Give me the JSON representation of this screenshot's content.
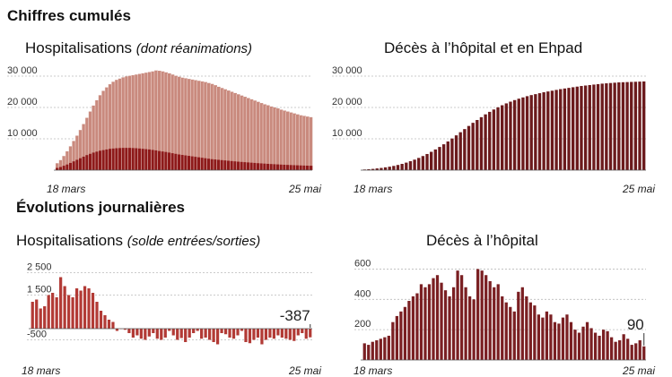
{
  "headings": {
    "cumulative": "Chiffres cumulés",
    "daily": "Évolutions journalières"
  },
  "chart_data": [
    {
      "id": "hosp_cum",
      "type": "bar",
      "title": "Hospitalisations",
      "subtitle": "(dont réanimations)",
      "x_start_label": "18 mars",
      "x_end_label": "25 mai",
      "yticks": [
        10000,
        20000,
        30000
      ],
      "ytick_labels": [
        "10 000",
        "20 000",
        "30 000"
      ],
      "ylim": [
        0,
        32000
      ],
      "colors": {
        "hospitalisations": "#c98a7e",
        "reanimations": "#8e1a1a"
      },
      "series": [
        {
          "name": "Hospitalisations",
          "values": [
            2200,
            3200,
            4500,
            6000,
            7600,
            9300,
            11000,
            12800,
            14700,
            16700,
            18700,
            20600,
            22300,
            23900,
            25300,
            26400,
            27400,
            28200,
            28800,
            29200,
            29600,
            29900,
            30100,
            30300,
            30500,
            30700,
            30900,
            31100,
            31300,
            31500,
            31800,
            31700,
            31500,
            31200,
            30900,
            30500,
            30100,
            29800,
            29500,
            29300,
            29100,
            28900,
            28700,
            28500,
            28300,
            28100,
            27800,
            27500,
            27100,
            26600,
            26200,
            25800,
            25400,
            25000,
            24600,
            24200,
            23800,
            23400,
            23000,
            22600,
            22200,
            21800,
            21400,
            21000,
            20700,
            20300,
            20000,
            19700,
            19300,
            19000,
            18700,
            18400,
            18100,
            17800,
            17500,
            17300,
            17100,
            16900
          ]
        },
        {
          "name": "Réanimations",
          "values": [
            700,
            1000,
            1400,
            1800,
            2300,
            2800,
            3300,
            3800,
            4300,
            4800,
            5200,
            5600,
            5900,
            6200,
            6400,
            6600,
            6800,
            6900,
            7000,
            7050,
            7100,
            7100,
            7100,
            7050,
            7000,
            6900,
            6800,
            6700,
            6600,
            6450,
            6300,
            6100,
            5950,
            5800,
            5600,
            5400,
            5200,
            5000,
            4850,
            4700,
            4550,
            4400,
            4250,
            4100,
            3950,
            3800,
            3650,
            3500,
            3400,
            3300,
            3200,
            3100,
            3000,
            2900,
            2800,
            2700,
            2620,
            2540,
            2460,
            2380,
            2300,
            2220,
            2150,
            2080,
            2010,
            1950,
            1890,
            1830,
            1770,
            1720,
            1670,
            1620,
            1580,
            1540,
            1500,
            1460,
            1430,
            1400
          ]
        }
      ]
    },
    {
      "id": "deces_cum",
      "type": "bar",
      "title": "Décès à l’hôpital et en Ehpad",
      "x_start_label": "18 mars",
      "x_end_label": "25 mai",
      "yticks": [
        10000,
        20000,
        30000
      ],
      "ytick_labels": [
        "10 000",
        "20 000",
        "30 000"
      ],
      "ylim": [
        0,
        32000
      ],
      "colors": {
        "bars": "#6b1a1c"
      },
      "series": [
        {
          "name": "Décès",
          "values": [
            200,
            300,
            400,
            550,
            700,
            900,
            1100,
            1350,
            1650,
            2000,
            2400,
            2850,
            3350,
            3900,
            4500,
            5150,
            5850,
            6600,
            7400,
            8250,
            9150,
            10100,
            11100,
            12100,
            13100,
            14100,
            15100,
            16000,
            16900,
            17800,
            18600,
            19350,
            20050,
            20700,
            21300,
            21850,
            22350,
            22800,
            23200,
            23600,
            23950,
            24250,
            24550,
            24850,
            25100,
            25350,
            25600,
            25850,
            26050,
            26250,
            26450,
            26650,
            26850,
            27000,
            27150,
            27300,
            27450,
            27600,
            27700,
            27800,
            27900,
            28000,
            28050,
            28100,
            28150,
            28200,
            28250,
            28300
          ]
        }
      ]
    },
    {
      "id": "hosp_daily",
      "type": "bar",
      "title": "Hospitalisations",
      "subtitle": "(solde entrées/sorties)",
      "x_start_label": "18 mars",
      "x_end_label": "25 mai",
      "yticks": [
        -500,
        1500,
        2500
      ],
      "ytick_labels": [
        "-500",
        "1 500",
        "2 500"
      ],
      "ylim": [
        -1000,
        3000
      ],
      "callout": "-387",
      "colors": {
        "bars": "#b23a35"
      },
      "series": [
        {
          "name": "Solde",
          "values": [
            1200,
            1300,
            900,
            1000,
            1500,
            1600,
            1400,
            2300,
            1900,
            1500,
            1400,
            1800,
            1700,
            1900,
            1800,
            1600,
            1200,
            800,
            600,
            400,
            300,
            -100,
            0,
            -50,
            -200,
            -400,
            -300,
            -450,
            -500,
            -350,
            -200,
            -450,
            -500,
            -400,
            -100,
            -300,
            -500,
            -420,
            -600,
            -400,
            -200,
            -100,
            -450,
            -400,
            -500,
            -600,
            -700,
            -200,
            -250,
            -400,
            -450,
            -300,
            -100,
            -600,
            -650,
            -500,
            -400,
            -700,
            -500,
            -400,
            -450,
            -300,
            -400,
            -450,
            -500,
            -550,
            -300,
            -200,
            -450,
            -387
          ]
        }
      ]
    },
    {
      "id": "deces_hop_daily",
      "type": "bar",
      "title": "Décès à l’hôpital",
      "x_start_label": "18 mars",
      "x_end_label": "25 mai",
      "yticks": [
        200,
        400,
        600
      ],
      "ytick_labels": [
        "200",
        "400",
        "600"
      ],
      "ylim": [
        0,
        650
      ],
      "callout": "90",
      "colors": {
        "bars": "#7a1f22"
      },
      "series": [
        {
          "name": "Décès",
          "values": [
            110,
            100,
            120,
            130,
            140,
            150,
            160,
            250,
            290,
            320,
            350,
            390,
            420,
            440,
            500,
            480,
            500,
            540,
            560,
            510,
            460,
            420,
            480,
            590,
            560,
            480,
            420,
            400,
            600,
            590,
            560,
            520,
            480,
            500,
            420,
            380,
            350,
            320,
            450,
            480,
            420,
            380,
            360,
            300,
            280,
            320,
            300,
            250,
            240,
            280,
            300,
            250,
            200,
            180,
            220,
            250,
            210,
            180,
            160,
            200,
            190,
            150,
            120,
            130,
            170,
            140,
            100,
            110,
            130,
            90
          ]
        }
      ]
    }
  ]
}
